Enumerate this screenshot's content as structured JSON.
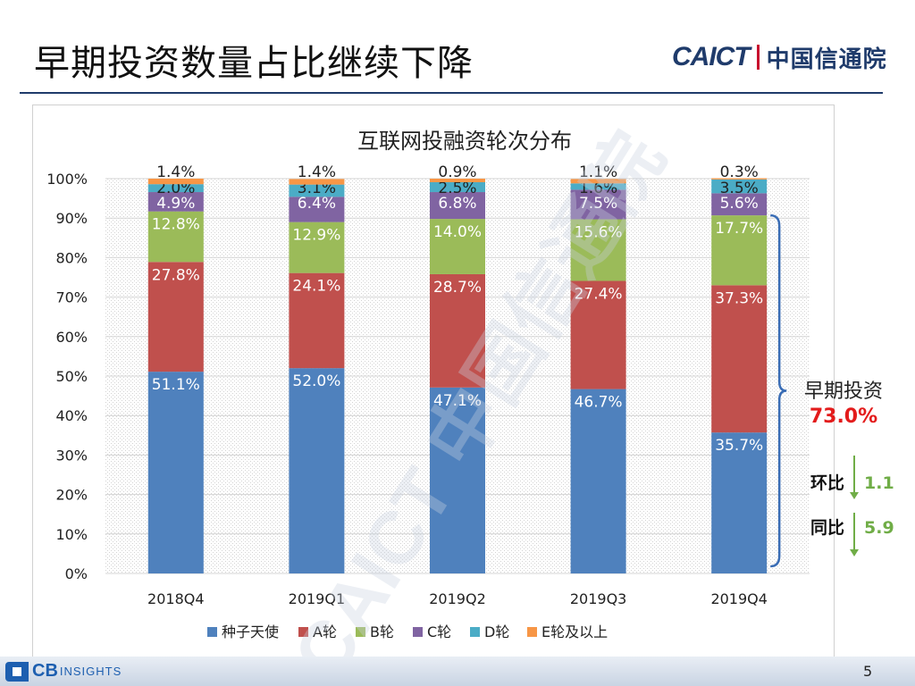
{
  "slide": {
    "title": "早期投资数量占比继续下降",
    "logo_en": "CAICT",
    "logo_cn": "中国信通院",
    "watermark": "CAICT 中国信通院",
    "footer_logo_cb": "CB",
    "footer_logo_insights": "INSIGHTS",
    "page_number": "5"
  },
  "colors": {
    "title_rule": "#1f3b6b",
    "brace": "#3a6db5",
    "early_total": "#e31c1c",
    "change_arrow": "#70ad47",
    "change_value": "#70ad47"
  },
  "annotations": {
    "early_label": "早期投资",
    "early_total": "73.0%",
    "qoq_label": "环比",
    "qoq_value": "1.1",
    "yoy_label": "同比",
    "yoy_value": "5.9"
  },
  "chart_data": {
    "type": "bar",
    "stacked": true,
    "title": "互联网投融资轮次分布",
    "categories": [
      "2018Q4",
      "2019Q1",
      "2019Q2",
      "2019Q3",
      "2019Q4"
    ],
    "ylim": [
      0,
      100
    ],
    "yticks": [
      "0%",
      "10%",
      "20%",
      "30%",
      "40%",
      "50%",
      "60%",
      "70%",
      "80%",
      "90%",
      "100%"
    ],
    "grid": true,
    "legend_position": "bottom",
    "series": [
      {
        "name": "种子天使",
        "color": "#4f81bd",
        "values": [
          51.1,
          52.0,
          47.1,
          46.7,
          35.7
        ],
        "labels": [
          "51.1%",
          "52.0%",
          "47.1%",
          "46.7%",
          "35.7%"
        ]
      },
      {
        "name": "A轮",
        "color": "#c0504d",
        "values": [
          27.8,
          24.1,
          28.7,
          27.4,
          37.3
        ],
        "labels": [
          "27.8%",
          "24.1%",
          "28.7%",
          "27.4%",
          "37.3%"
        ]
      },
      {
        "name": "B轮",
        "color": "#9bbb59",
        "values": [
          12.8,
          12.9,
          14.0,
          15.6,
          17.7
        ],
        "labels": [
          "12.8%",
          "12.9%",
          "14.0%",
          "15.6%",
          "17.7%"
        ]
      },
      {
        "name": "C轮",
        "color": "#8064a2",
        "values": [
          4.9,
          6.4,
          6.8,
          7.5,
          5.6
        ],
        "labels": [
          "4.9%",
          "6.4%",
          "6.8%",
          "7.5%",
          "5.6%"
        ]
      },
      {
        "name": "D轮",
        "color": "#4bacc6",
        "values": [
          2.0,
          3.1,
          2.5,
          1.6,
          3.5
        ],
        "labels": [
          "2.0%",
          "3.1%",
          "2.5%",
          "1.6%",
          "3.5%"
        ]
      },
      {
        "name": "E轮及以上",
        "color": "#f79646",
        "values": [
          1.4,
          1.4,
          0.9,
          1.1,
          0.3
        ],
        "labels": [
          "1.4%",
          "1.4%",
          "0.9%",
          "1.1%",
          "0.3%"
        ]
      }
    ]
  }
}
